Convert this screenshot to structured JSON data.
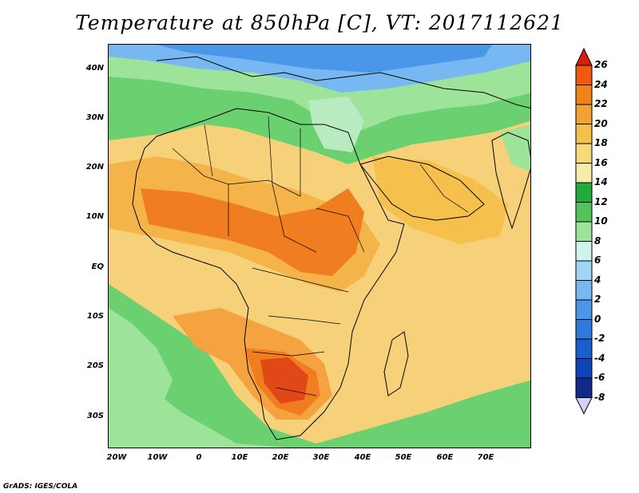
{
  "title": "Temperature at 850hPa [C], VT: 2017112621",
  "credit": "GrADS: IGES/COLA",
  "map": {
    "lon_range": [
      -25,
      80
    ],
    "lat_range": [
      -37,
      45
    ],
    "lat_labels": [
      "40N",
      "30N",
      "20N",
      "10N",
      "EQ",
      "10S",
      "20S",
      "30S"
    ],
    "lon_labels": [
      "20W",
      "10W",
      "0",
      "10E",
      "20E",
      "30E",
      "40E",
      "50E",
      "60E",
      "70E"
    ]
  },
  "colorbar": {
    "levels": [
      "26",
      "24",
      "22",
      "20",
      "18",
      "16",
      "14",
      "12",
      "10",
      "8",
      "6",
      "4",
      "2",
      "0",
      "-2",
      "-4",
      "-6",
      "-8"
    ],
    "colors": [
      "#e03010",
      "#f05a10",
      "#f0841a",
      "#f2a232",
      "#f5c04c",
      "#f7d979",
      "#f8eca8",
      "#22aa3a",
      "#51c45a",
      "#9ee39a",
      "#d2f2ee",
      "#9fd5f6",
      "#78b8f2",
      "#4a97ea",
      "#2c7ade",
      "#1a5fcf",
      "#1042b8",
      "#102a8a",
      "#0a1d6e"
    ],
    "top_arrow_color": "#d8200c",
    "bottom_arrow_color": "#d8d0f8"
  },
  "regions": {
    "cold_north": "#5fa2ee",
    "cool_north": "#7cc6f2",
    "green_north": "#6bd070",
    "warm_band": "#f5b44a",
    "hot_core": "#f07d20",
    "hottest": "#e04818",
    "ocean_south": "#8fdc8e",
    "mid_warm": "#f7ce6c"
  }
}
